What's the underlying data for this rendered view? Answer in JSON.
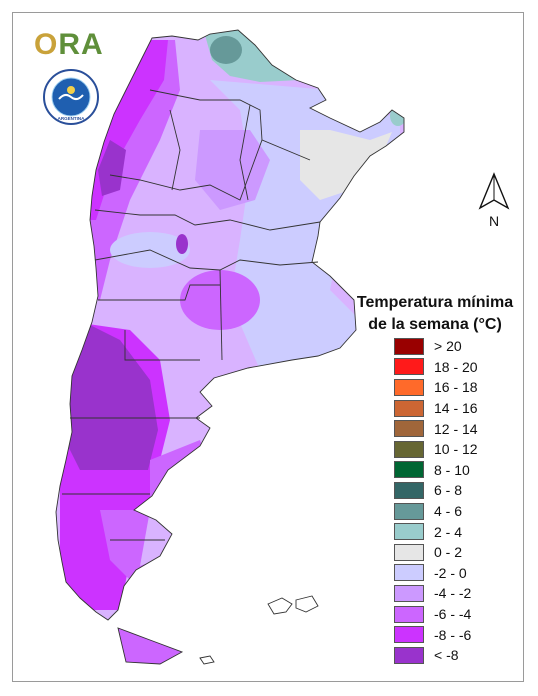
{
  "logo": {
    "text_o": "O",
    "text_ra": "RA"
  },
  "seal": {
    "ring_text": "SERVICIO METEOROLOGICO NACIONAL",
    "bottom_text": "ARGENTINA"
  },
  "north_label": "N",
  "legend": {
    "title_line1": "Temperatura mínima",
    "title_line2": "de la semana (°C)",
    "items": [
      {
        "label": "> 20",
        "color": "#990000"
      },
      {
        "label": "18 - 20",
        "color": "#ff1a1a"
      },
      {
        "label": "16 - 18",
        "color": "#ff6a2a"
      },
      {
        "label": "14 - 16",
        "color": "#cc6633"
      },
      {
        "label": "12 - 14",
        "color": "#a0663a"
      },
      {
        "label": "10 - 12",
        "color": "#666633"
      },
      {
        "label": "8 - 10",
        "color": "#006633"
      },
      {
        "label": "6 - 8",
        "color": "#336666"
      },
      {
        "label": "4 - 6",
        "color": "#669999"
      },
      {
        "label": "2 - 4",
        "color": "#99cccc"
      },
      {
        "label": "0 - 2",
        "color": "#e6e6e6"
      },
      {
        "label": "-2 - 0",
        "color": "#ccccff"
      },
      {
        "label": "-4 - -2",
        "color": "#cc99ff"
      },
      {
        "label": "-6 - -4",
        "color": "#cc66ff"
      },
      {
        "label": "-8 - -6",
        "color": "#cc33ff"
      },
      {
        "label": "< -8",
        "color": "#9933cc"
      }
    ]
  }
}
